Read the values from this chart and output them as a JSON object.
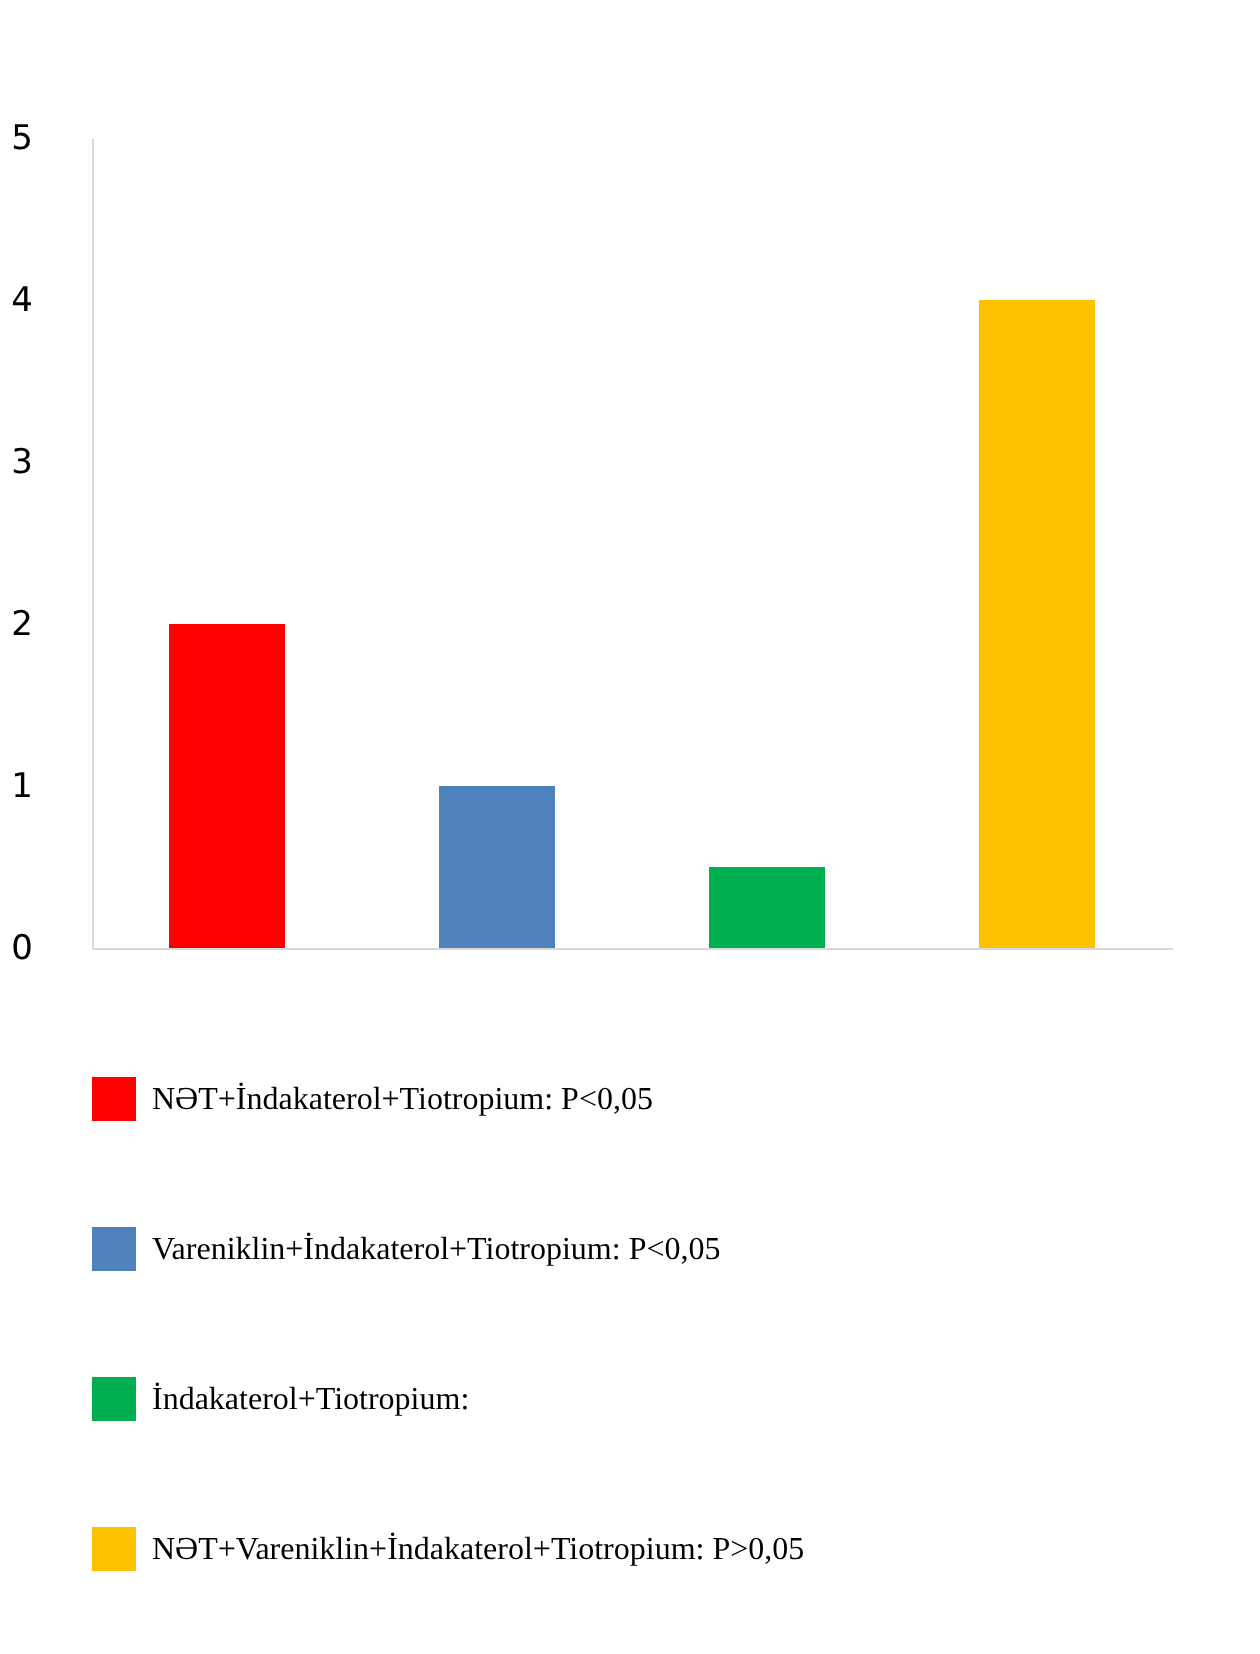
{
  "chart_data": {
    "type": "bar",
    "categories": [
      null,
      null,
      null,
      null
    ],
    "series": [
      {
        "name": "NƏT+İndakaterol+Tiotropium: P<0,05",
        "color": "#ff0000",
        "values": [
          2,
          null,
          null,
          null
        ]
      },
      {
        "name": "Vareniklin+İndakaterol+Tiotropium: P<0,05",
        "color": "#4f81bd",
        "values": [
          null,
          1,
          null,
          null
        ]
      },
      {
        "name": "İndakaterol+Tiotropium:",
        "color": "#00b050",
        "values": [
          null,
          null,
          0.5,
          null
        ]
      },
      {
        "name": "NƏT+Vareniklin+İndakaterol+Tiotropium: P>0,05",
        "color": "#ffc000",
        "values": [
          null,
          null,
          null,
          4
        ]
      }
    ],
    "ylim": [
      0,
      5
    ],
    "yticks": [
      0,
      1,
      2,
      3,
      4,
      5
    ],
    "grid": false,
    "legend": "bottom",
    "tick_labels": "y"
  }
}
